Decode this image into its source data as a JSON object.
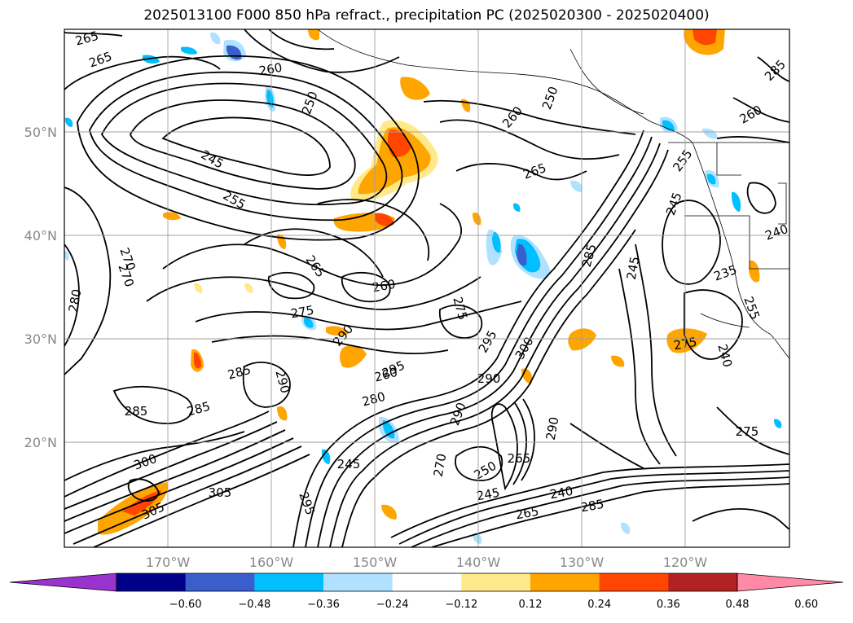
{
  "title": "2025013100 F000 850 hPa refract., precipitation PC (2025020300 - 2025020400)",
  "axes": {
    "lat_ticks": [
      "50°N",
      "40°N",
      "30°N",
      "20°N"
    ],
    "lon_ticks": [
      "170°W",
      "160°W",
      "150°W",
      "140°W",
      "130°W",
      "120°W"
    ]
  },
  "colorbar": {
    "bins": [
      {
        "color": "#9a32cd"
      },
      {
        "color": "#00008b"
      },
      {
        "color": "#3a5fcd"
      },
      {
        "color": "#00bfff"
      },
      {
        "color": "#b0e2ff"
      },
      {
        "color": "#ffffff"
      },
      {
        "color": "#ffe98a"
      },
      {
        "color": "#ffa500"
      },
      {
        "color": "#ff4500"
      },
      {
        "color": "#b22222"
      },
      {
        "color": "#ff89a6"
      }
    ],
    "tick_labels": [
      "−0.60",
      "−0.48",
      "−0.36",
      "−0.24",
      "−0.12",
      "0.12",
      "0.24",
      "0.36",
      "0.48",
      "0.60"
    ]
  },
  "contour_labels": [
    "265",
    "265",
    "260",
    "250",
    "245",
    "255",
    "270",
    "280",
    "265",
    "260",
    "275",
    "290",
    "285",
    "285",
    "285",
    "290",
    "295",
    "280",
    "290",
    "300",
    "305",
    "305",
    "295",
    "270",
    "275",
    "250",
    "245",
    "265",
    "265",
    "260",
    "250",
    "255",
    "245",
    "240",
    "235",
    "245",
    "240",
    "275",
    "275",
    "285",
    "290",
    "295",
    "300",
    "260",
    "285",
    "285",
    "240",
    "265",
    "290",
    "260",
    "245",
    "255",
    "270"
  ],
  "precip_colors": {
    "neg_light": "#b0e2ff",
    "neg_mid": "#00bfff",
    "neg_strong": "#3a5fcd",
    "neg_max": "#9a32cd",
    "pos_light": "#ffe98a",
    "pos_mid": "#ffa500",
    "pos_strong": "#ff4500"
  }
}
